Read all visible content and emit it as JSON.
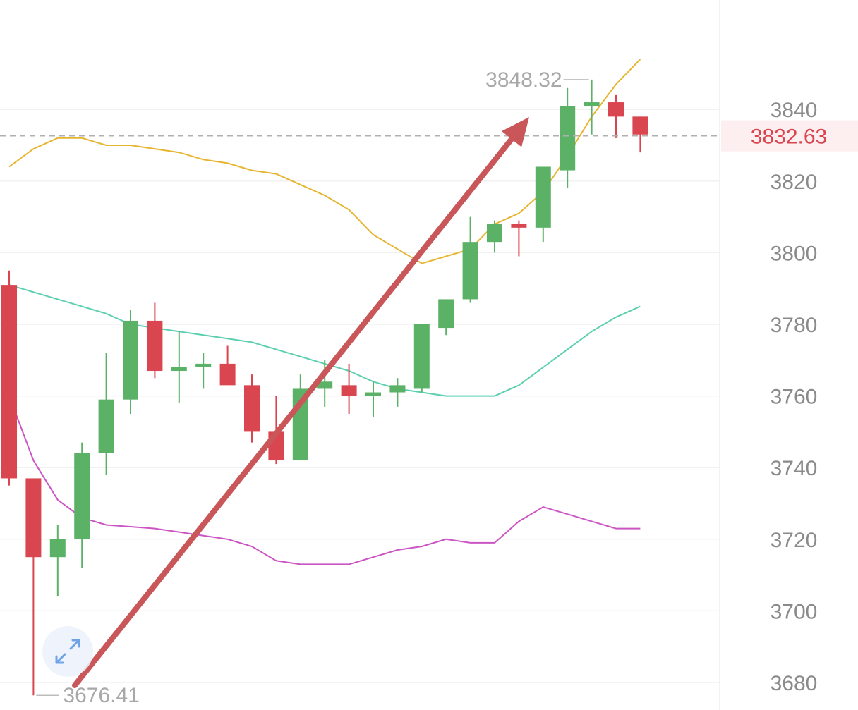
{
  "chart_data": {
    "type": "candlestick",
    "y_ticks": [
      3680,
      3700,
      3720,
      3740,
      3760,
      3780,
      3800,
      3820,
      3840
    ],
    "ylim": [
      3674,
      3860
    ],
    "grid": true,
    "last_price": 3832.63,
    "last_price_label": "3832.63",
    "high_label": "3848.32",
    "low_label": "3676.41",
    "candles": [
      {
        "o": 3791,
        "h": 3795,
        "l": 3735,
        "c": 3737
      },
      {
        "o": 3737,
        "h": 3737,
        "l": 3676.41,
        "c": 3715
      },
      {
        "o": 3715,
        "h": 3724,
        "l": 3704,
        "c": 3720
      },
      {
        "o": 3720,
        "h": 3747,
        "l": 3712,
        "c": 3744
      },
      {
        "o": 3744,
        "h": 3772,
        "l": 3738,
        "c": 3759
      },
      {
        "o": 3759,
        "h": 3784,
        "l": 3755,
        "c": 3781
      },
      {
        "o": 3781,
        "h": 3786,
        "l": 3765,
        "c": 3767
      },
      {
        "o": 3767,
        "h": 3778,
        "l": 3758,
        "c": 3768
      },
      {
        "o": 3768,
        "h": 3772,
        "l": 3762,
        "c": 3769
      },
      {
        "o": 3769,
        "h": 3774,
        "l": 3764,
        "c": 3763
      },
      {
        "o": 3763,
        "h": 3766,
        "l": 3747,
        "c": 3750
      },
      {
        "o": 3750,
        "h": 3760,
        "l": 3741,
        "c": 3742
      },
      {
        "o": 3742,
        "h": 3766,
        "l": 3742,
        "c": 3762
      },
      {
        "o": 3762,
        "h": 3770,
        "l": 3757,
        "c": 3764
      },
      {
        "o": 3763,
        "h": 3769,
        "l": 3755,
        "c": 3760
      },
      {
        "o": 3760,
        "h": 3764,
        "l": 3754,
        "c": 3761
      },
      {
        "o": 3761,
        "h": 3765,
        "l": 3757,
        "c": 3763
      },
      {
        "o": 3762,
        "h": 3780,
        "l": 3761,
        "c": 3780
      },
      {
        "o": 3779,
        "h": 3787,
        "l": 3777,
        "c": 3787
      },
      {
        "o": 3787,
        "h": 3810,
        "l": 3786,
        "c": 3803
      },
      {
        "o": 3803,
        "h": 3809,
        "l": 3800,
        "c": 3808
      },
      {
        "o": 3808,
        "h": 3809,
        "l": 3799,
        "c": 3807
      },
      {
        "o": 3807,
        "h": 3824,
        "l": 3803,
        "c": 3824
      },
      {
        "o": 3823,
        "h": 3846,
        "l": 3818,
        "c": 3841
      },
      {
        "o": 3841,
        "h": 3848.32,
        "l": 3833,
        "c": 3842
      },
      {
        "o": 3842,
        "h": 3844,
        "l": 3832,
        "c": 3838
      },
      {
        "o": 3838,
        "h": 3838,
        "l": 3828,
        "c": 3833
      }
    ],
    "series": [
      {
        "color": "#e6b530",
        "values": [
          3824,
          3829,
          3832,
          3832,
          3830,
          3830,
          3829,
          3828,
          3826,
          3825,
          3823,
          3822,
          3819,
          3816,
          3812,
          3805,
          3801,
          3797,
          3799,
          3801,
          3808,
          3811,
          3817,
          3827,
          3838,
          3847,
          3854
        ]
      },
      {
        "color": "#5ccfb0",
        "values": [
          3791,
          3789,
          3787,
          3785,
          3783,
          3780,
          3779,
          3778,
          3777,
          3776,
          3775,
          3773,
          3771,
          3769,
          3767,
          3764,
          3762,
          3761,
          3760,
          3760,
          3760,
          3763,
          3768,
          3773,
          3778,
          3782,
          3785
        ]
      },
      {
        "color": "#cc55c4",
        "values": [
          3760,
          3742,
          3731,
          3726,
          3724,
          3723.5,
          3723,
          3722,
          3721,
          3720,
          3718,
          3714,
          3713,
          3713,
          3713,
          3715,
          3717,
          3718,
          3720,
          3719,
          3719,
          3725,
          3729,
          3727,
          3725,
          3723,
          3723
        ]
      }
    ],
    "candle_colors": {
      "up": "#5bb267",
      "down": "#d9464f"
    },
    "arrow_color": "#c9575a"
  },
  "controls": {
    "expand_icon": "expand-arrows-icon"
  }
}
